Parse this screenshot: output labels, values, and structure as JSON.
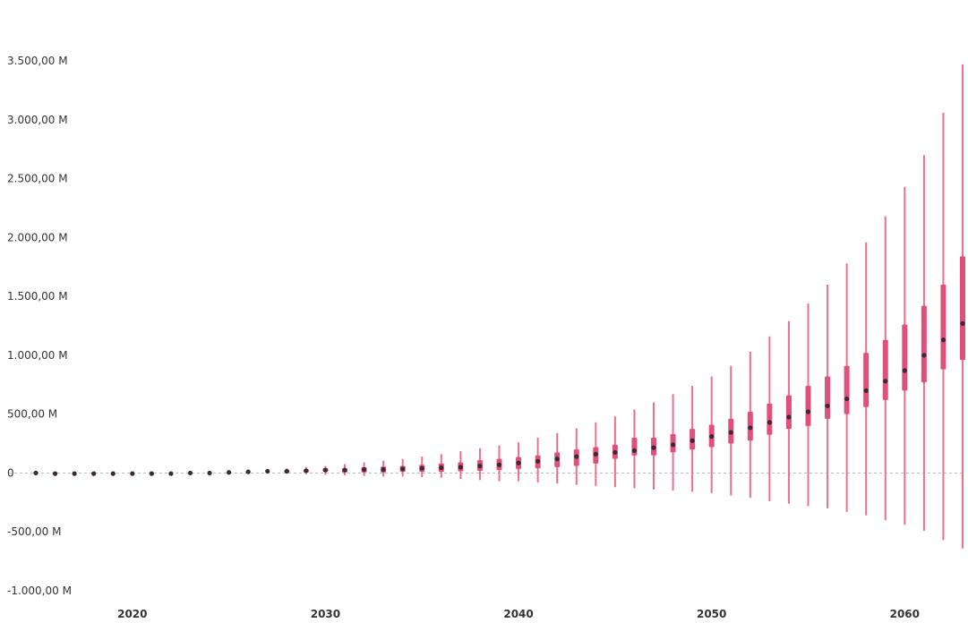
{
  "chart_data": {
    "type": "scatter",
    "grid": false,
    "legend": "none",
    "x_ticks": [
      "2020",
      "2030",
      "2040",
      "2050",
      "2060"
    ],
    "y_ticks": [
      "-1.000,00 M",
      "-500,00 M",
      "0",
      "500,00 M",
      "1.000,00 M",
      "1.500,00 M",
      "2.000,00 M",
      "2.500,00 M",
      "3.000,00 M",
      "3.500,00 M"
    ],
    "y_tick_values": [
      -1000,
      -500,
      0,
      500,
      1000,
      1500,
      2000,
      2500,
      3000,
      3500
    ],
    "xlim": [
      2015,
      2063
    ],
    "ylim": [
      -1000,
      3500
    ],
    "zero_line": true,
    "colors": {
      "whisker": "#ef6f8c",
      "box": "#e0507a",
      "median": "#3a2a33",
      "zero_line": "#bbbbbb",
      "axis_text": "#333333"
    },
    "series": [
      {
        "x": [
          2015,
          2016,
          2017,
          2018,
          2019,
          2020,
          2021,
          2022,
          2023,
          2024,
          2025,
          2026,
          2027,
          2028,
          2029,
          2030,
          2031,
          2032,
          2033,
          2034,
          2035,
          2036,
          2037,
          2038,
          2039,
          2040,
          2041,
          2042,
          2043,
          2044,
          2045,
          2046,
          2047,
          2048,
          2049,
          2050,
          2051,
          2052,
          2053,
          2054,
          2055,
          2056,
          2057,
          2058,
          2059,
          2060,
          2061,
          2062,
          2063
        ],
        "median": [
          0,
          -5,
          -5,
          -5,
          -5,
          -5,
          -5,
          -5,
          0,
          0,
          5,
          10,
          15,
          15,
          20,
          25,
          25,
          30,
          30,
          35,
          40,
          45,
          50,
          60,
          70,
          85,
          100,
          120,
          140,
          160,
          175,
          190,
          215,
          240,
          275,
          310,
          345,
          385,
          430,
          475,
          520,
          570,
          630,
          700,
          780,
          870,
          1000,
          1130,
          1270
        ],
        "box_low": [
          0,
          -5,
          -5,
          -5,
          -5,
          -5,
          -5,
          -5,
          -2,
          -2,
          0,
          2,
          5,
          5,
          5,
          10,
          5,
          5,
          5,
          10,
          10,
          10,
          15,
          20,
          25,
          35,
          40,
          50,
          60,
          80,
          120,
          150,
          150,
          175,
          200,
          220,
          250,
          275,
          325,
          375,
          400,
          460,
          500,
          560,
          620,
          700,
          770,
          880,
          960
        ],
        "box_high": [
          0,
          -5,
          -5,
          -5,
          -5,
          -5,
          -5,
          -5,
          2,
          2,
          10,
          15,
          20,
          25,
          30,
          40,
          40,
          50,
          55,
          60,
          70,
          80,
          90,
          110,
          120,
          135,
          150,
          175,
          200,
          220,
          240,
          300,
          300,
          330,
          375,
          410,
          460,
          520,
          590,
          660,
          740,
          820,
          910,
          1020,
          1130,
          1260,
          1420,
          1600,
          1840
        ],
        "whisker_low": [
          0,
          -5,
          -5,
          -5,
          -5,
          -5,
          -5,
          -5,
          -5,
          -5,
          -5,
          -5,
          -5,
          -5,
          -10,
          -15,
          -20,
          -25,
          -30,
          -30,
          -35,
          -40,
          -50,
          -60,
          -70,
          -70,
          -80,
          -90,
          -100,
          -110,
          -120,
          -130,
          -140,
          -150,
          -160,
          -170,
          -190,
          -210,
          -240,
          -260,
          -280,
          -300,
          -330,
          -360,
          -400,
          -440,
          -490,
          -570,
          -640
        ],
        "whisker_high": [
          0,
          -5,
          -5,
          -5,
          -5,
          -5,
          -5,
          -5,
          5,
          5,
          15,
          25,
          30,
          40,
          50,
          60,
          75,
          90,
          105,
          120,
          140,
          160,
          185,
          210,
          235,
          260,
          300,
          340,
          380,
          430,
          480,
          540,
          600,
          670,
          740,
          820,
          910,
          1030,
          1160,
          1290,
          1440,
          1600,
          1780,
          1960,
          2180,
          2430,
          2700,
          3060,
          3470
        ]
      }
    ]
  }
}
